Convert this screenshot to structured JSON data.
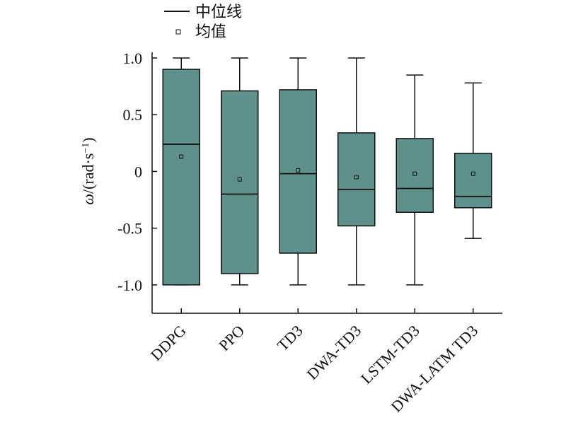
{
  "chart_data": {
    "type": "box",
    "legend": {
      "placement": "top",
      "entries": [
        {
          "symbol": "line",
          "label": "中位线"
        },
        {
          "symbol": "square",
          "label": "均值"
        }
      ]
    },
    "ylabel": {
      "italic": "ω",
      "upright": "/(rad·s",
      "sup": "−1",
      "close": ")"
    },
    "ylim": [
      -1.25,
      1.0
    ],
    "yticks": [
      {
        "value": 1.0,
        "label": "1.0"
      },
      {
        "value": 0.5,
        "label": "0.5"
      },
      {
        "value": 0,
        "label": "0"
      },
      {
        "value": -0.5,
        "label": "-0.5"
      },
      {
        "value": -1.0,
        "label": "-1.0"
      }
    ],
    "categories": [
      "DDPG",
      "PPO",
      "TD3",
      "DWA-TD3",
      "LSTM-TD3",
      "DWA-LATM TD3"
    ],
    "boxes": [
      {
        "whisker_low": -1.0,
        "q1": -1.0,
        "median": 0.24,
        "q3": 0.9,
        "whisker_high": 1.0,
        "mean": 0.13
      },
      {
        "whisker_low": -1.0,
        "q1": -0.9,
        "median": -0.2,
        "q3": 0.71,
        "whisker_high": 1.0,
        "mean": -0.07
      },
      {
        "whisker_low": -1.0,
        "q1": -0.72,
        "median": -0.02,
        "q3": 0.72,
        "whisker_high": 1.0,
        "mean": 0.01
      },
      {
        "whisker_low": -1.0,
        "q1": -0.48,
        "median": -0.16,
        "q3": 0.34,
        "whisker_high": 1.0,
        "mean": -0.05
      },
      {
        "whisker_low": -1.0,
        "q1": -0.36,
        "median": -0.15,
        "q3": 0.29,
        "whisker_high": 0.85,
        "mean": -0.02
      },
      {
        "whisker_low": -0.59,
        "q1": -0.32,
        "median": -0.22,
        "q3": 0.16,
        "whisker_high": 0.78,
        "mean": -0.02
      }
    ],
    "colors": {
      "box_fill": "#5f918c",
      "stroke": "#111111",
      "background": "#ffffff"
    }
  }
}
